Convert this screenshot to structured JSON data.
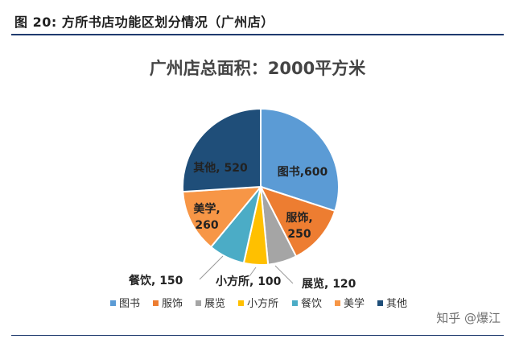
{
  "figure_caption": "图 20:  方所书店功能区划分情况（广州店）",
  "watermark": "知乎 @爆江",
  "chart_data": {
    "type": "pie",
    "title": "广州店总面积：2000平方米",
    "categories": [
      "图书",
      "服饰",
      "展览",
      "小方所",
      "餐饮",
      "美学",
      "其他"
    ],
    "values": [
      600,
      250,
      120,
      100,
      150,
      260,
      520
    ],
    "data_labels": [
      "图书,600",
      "服饰,\n250",
      "展览, 120",
      "小方所, 100",
      "餐饮, 150",
      "美学,\n260",
      "其他, 520"
    ],
    "colors": [
      "#5b9bd5",
      "#ed7d31",
      "#a5a5a5",
      "#ffc000",
      "#4bacc6",
      "#f79646",
      "#1f4e79"
    ],
    "legend": "bottom",
    "start_angle_deg": 0
  }
}
